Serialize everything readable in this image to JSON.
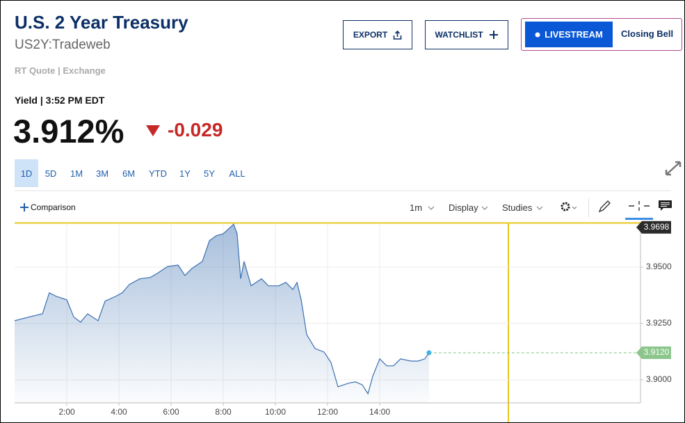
{
  "header": {
    "title": "U.S. 2 Year Treasury",
    "symbol": "US2Y:Tradeweb",
    "quote_source": "RT Quote | Exchange"
  },
  "buttons": {
    "export": "EXPORT",
    "watchlist": "WATCHLIST",
    "livestream": "LIVESTREAM",
    "closing_bell": "Closing Bell"
  },
  "quote": {
    "label": "Yield | 3:52 PM EDT",
    "price": "3.912%",
    "change": "-0.029"
  },
  "ranges": [
    "1D",
    "5D",
    "1M",
    "3M",
    "6M",
    "YTD",
    "1Y",
    "5Y",
    "ALL"
  ],
  "toolbar": {
    "comparison": "Comparison",
    "interval": "1m",
    "display": "Display",
    "studies": "Studies"
  },
  "chart_data": {
    "type": "area",
    "color": "#3a6fb0",
    "x": [
      0,
      0.53,
      1.07,
      1.33,
      1.6,
      2,
      2.27,
      2.53,
      2.8,
      3.2,
      3.47,
      3.87,
      4.13,
      4.4,
      4.8,
      5.2,
      5.47,
      5.87,
      6.27,
      6.53,
      6.8,
      7.2,
      7.47,
      7.73,
      8,
      8.4,
      8.53,
      8.67,
      8.8,
      9.07,
      9.47,
      9.73,
      10.13,
      10.4,
      10.67,
      10.83,
      10.99,
      11.2,
      11.52,
      11.87,
      12.13,
      12.4,
      12.8,
      13.07,
      13.33,
      13.55,
      13.73,
      14,
      14.27,
      14.53,
      14.8,
      15.2,
      15.47,
      15.73,
      15.89
    ],
    "values": [
      3.9262,
      3.9278,
      3.9293,
      3.9386,
      3.937,
      3.9355,
      3.9278,
      3.9256,
      3.9293,
      3.9262,
      3.9349,
      3.937,
      3.9386,
      3.9423,
      3.9448,
      3.9454,
      3.9472,
      3.9503,
      3.9509,
      3.9463,
      3.9494,
      3.9525,
      3.9617,
      3.9639,
      3.9648,
      3.969,
      3.9648,
      3.9448,
      3.9525,
      3.9417,
      3.9448,
      3.9417,
      3.9417,
      3.9432,
      3.9401,
      3.9432,
      3.9355,
      3.9201,
      3.9139,
      3.9123,
      3.9077,
      3.8969,
      3.8985,
      3.8991,
      3.8978,
      3.8938,
      3.9015,
      3.9093,
      3.9062,
      3.9062,
      3.9093,
      3.9083,
      3.9083,
      3.9093,
      3.912
    ],
    "xlim": [
      0,
      24
    ],
    "ylim": [
      3.8898,
      3.9694
    ],
    "xticks": [
      {
        "value": 2,
        "label": "2:00"
      },
      {
        "value": 4,
        "label": "4:00"
      },
      {
        "value": 6,
        "label": "6:00"
      },
      {
        "value": 8,
        "label": "8:00"
      },
      {
        "value": 10,
        "label": "10:00"
      },
      {
        "value": 12,
        "label": "12:00"
      },
      {
        "value": 14,
        "label": "14:00"
      }
    ],
    "yticks": [
      {
        "value": 3.9,
        "label": "3.9000"
      },
      {
        "value": 3.925,
        "label": "3.9250"
      },
      {
        "value": 3.95,
        "label": "3.9500"
      }
    ],
    "high_value": {
      "value": 3.9698,
      "label": "3.9698"
    },
    "last_value": {
      "value": 3.912,
      "label": "3.9120"
    },
    "grid": true
  }
}
